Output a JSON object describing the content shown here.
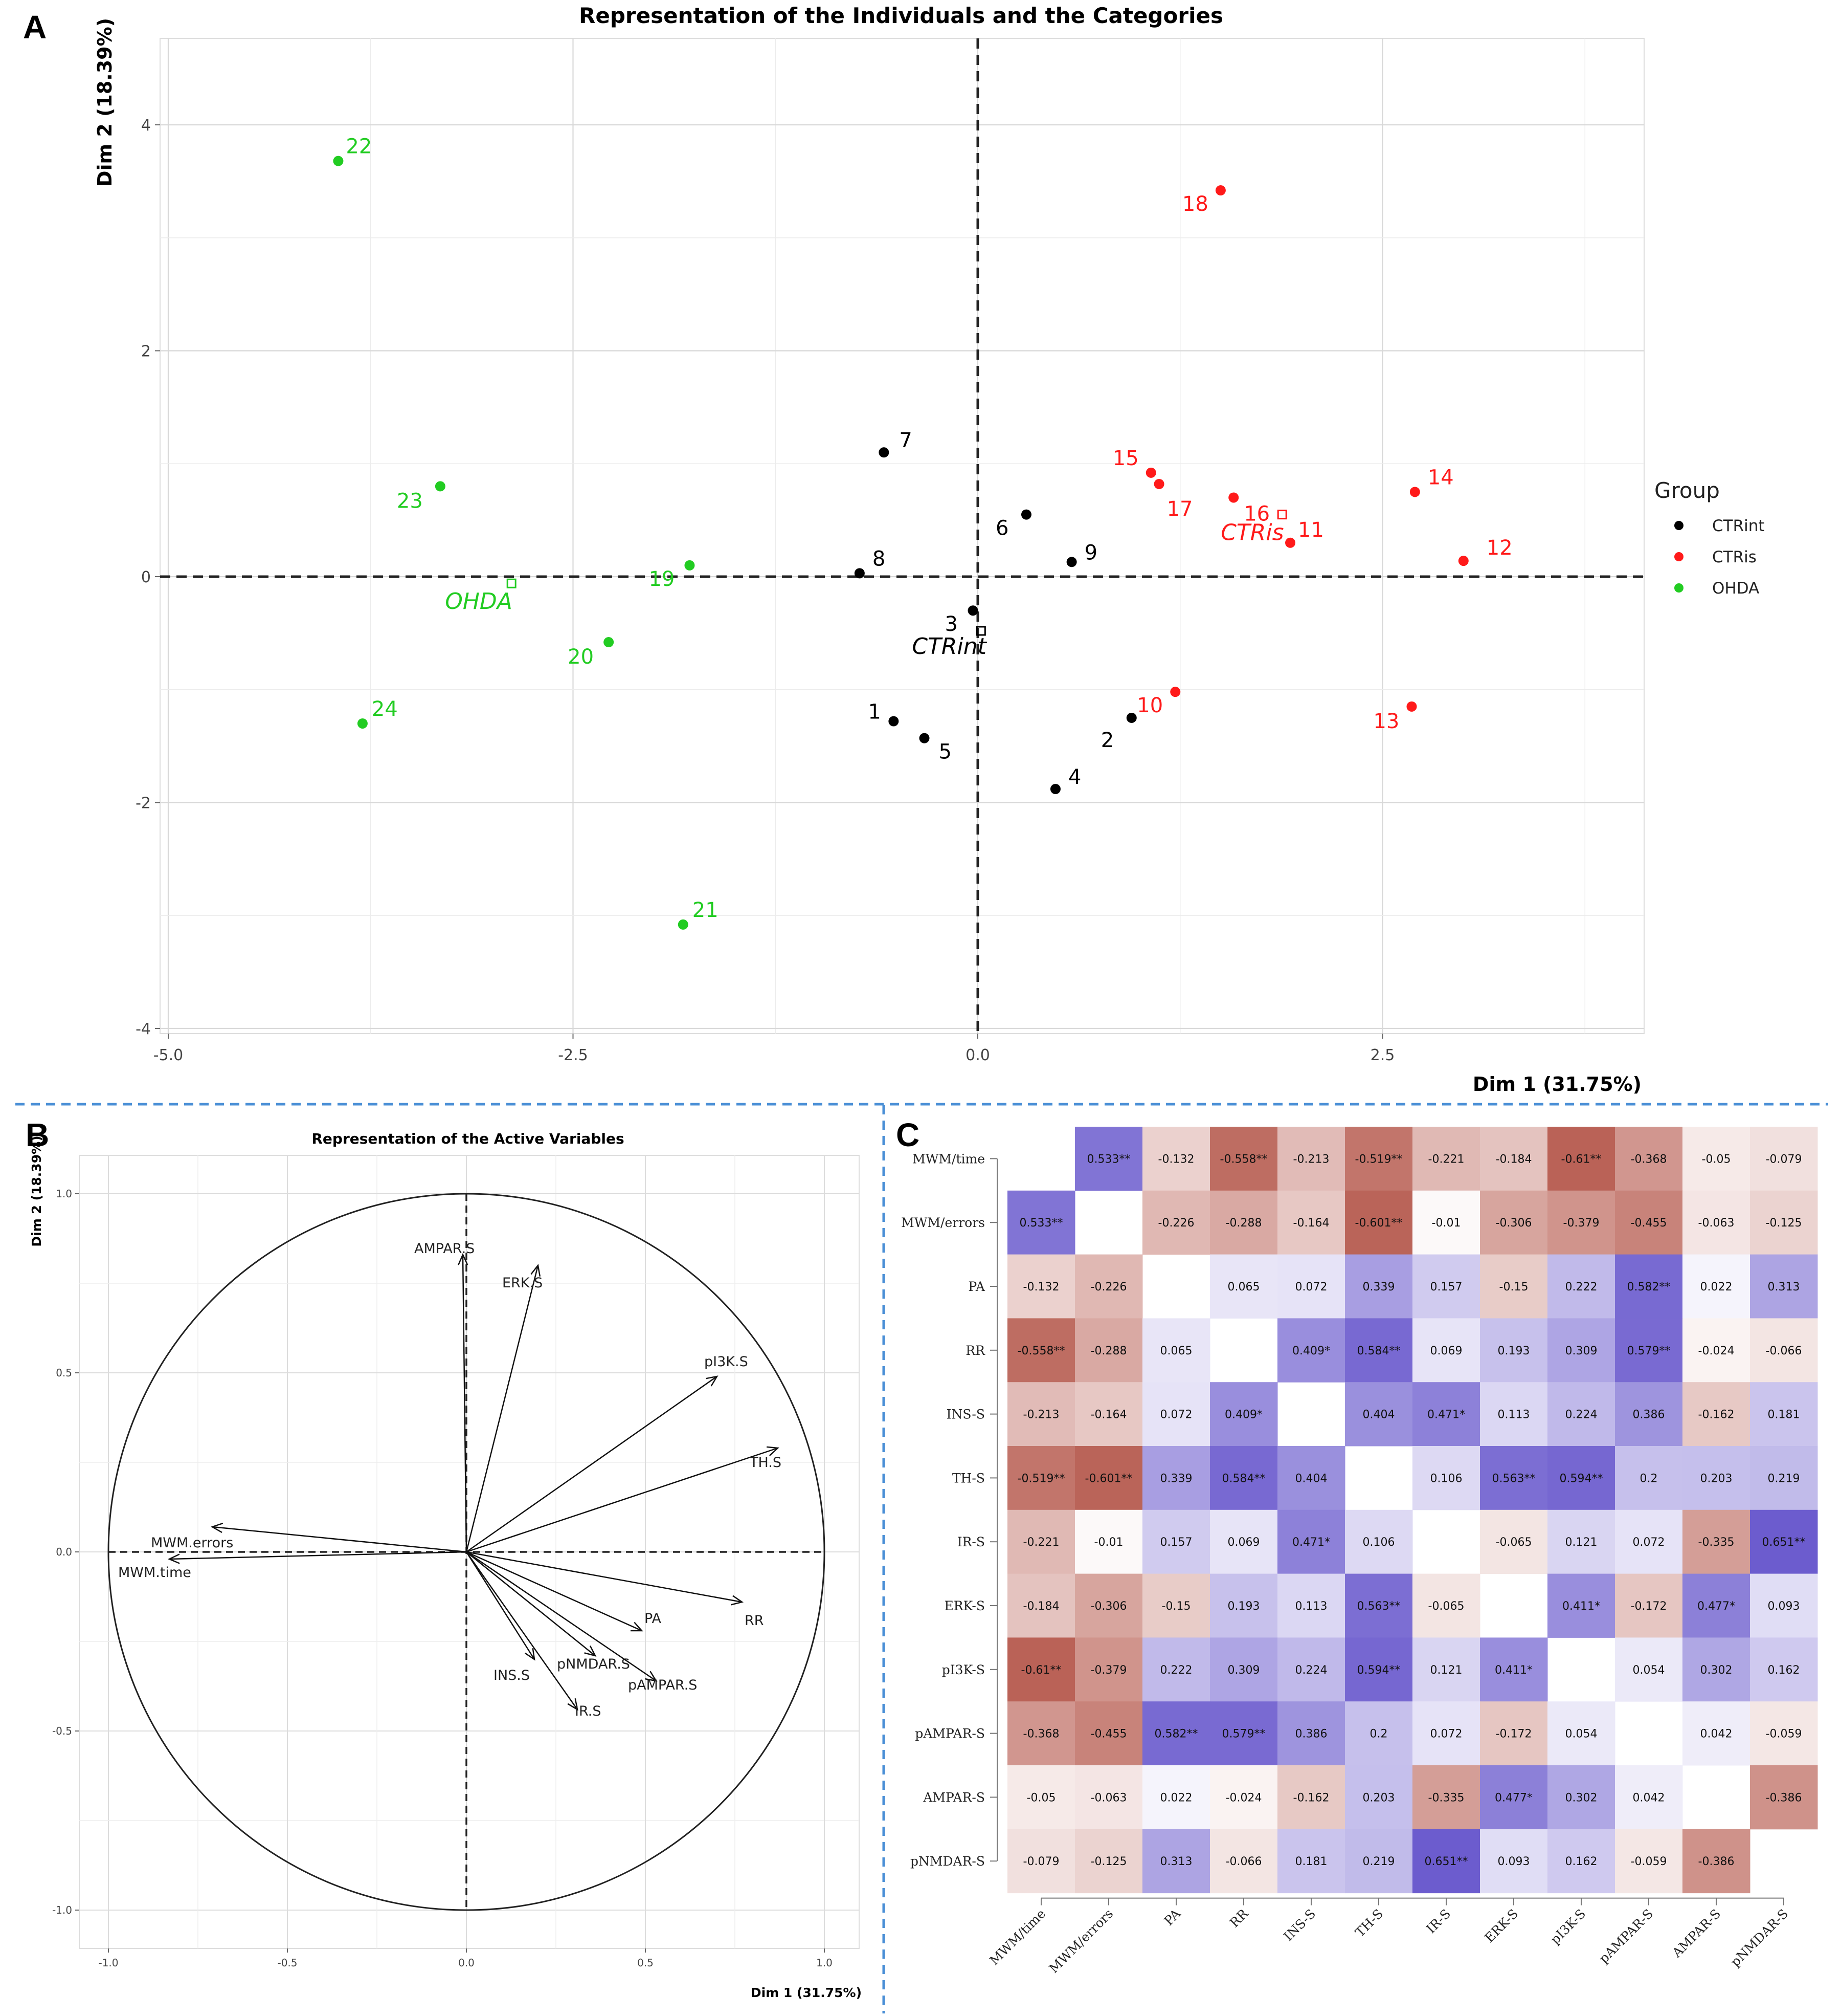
{
  "panels": {
    "a": "A",
    "b": "B",
    "c": "C"
  },
  "colors": {
    "CTRint": "#000000",
    "CTRis": "#ff1a1a",
    "OHDA": "#22cc22",
    "pos": "#6a5acd",
    "neg": "#b5584c"
  },
  "chart_data": [
    {
      "type": "scatter",
      "title": "Representation of the Individuals and the Categories",
      "xlabel": "Dim 1 (31.75%)",
      "ylabel": "Dim 2 (18.39%)",
      "xlim": [
        -5.1,
        4.1
      ],
      "ylim": [
        -4.1,
        4.75
      ],
      "xticks": [
        {
          "v": -5.0,
          "label": "-5.0"
        },
        {
          "v": -2.5,
          "label": "-2.5"
        },
        {
          "v": 0,
          "label": "0.0"
        },
        {
          "v": 2.5,
          "label": "2.5"
        }
      ],
      "yticks": [
        {
          "v": 4,
          "label": "4"
        },
        {
          "v": 2,
          "label": "2"
        },
        {
          "v": 0,
          "label": "0"
        },
        {
          "v": -2,
          "label": "-2"
        },
        {
          "v": -4,
          "label": "-4"
        }
      ],
      "legend": {
        "title": "Group",
        "position": "right",
        "entries": [
          {
            "label": "CTRint",
            "group": "CTRint"
          },
          {
            "label": "CTRis",
            "group": "CTRis"
          },
          {
            "label": "OHDA",
            "group": "OHDA"
          }
        ]
      },
      "points": [
        {
          "label": "1",
          "x": -0.52,
          "y": -1.28,
          "group": "CTRint"
        },
        {
          "label": "2",
          "x": 0.95,
          "y": -1.25,
          "group": "CTRint"
        },
        {
          "label": "3",
          "x": -0.03,
          "y": -0.3,
          "group": "CTRint"
        },
        {
          "label": "4",
          "x": 0.48,
          "y": -1.88,
          "group": "CTRint"
        },
        {
          "label": "5",
          "x": -0.33,
          "y": -1.43,
          "group": "CTRint"
        },
        {
          "label": "6",
          "x": 0.3,
          "y": 0.55,
          "group": "CTRint"
        },
        {
          "label": "7",
          "x": -0.58,
          "y": 1.1,
          "group": "CTRint"
        },
        {
          "label": "8",
          "x": -0.73,
          "y": 0.03,
          "group": "CTRint"
        },
        {
          "label": "9",
          "x": 0.58,
          "y": 0.13,
          "group": "CTRint"
        },
        {
          "label": "10",
          "x": 1.22,
          "y": -1.02,
          "group": "CTRis"
        },
        {
          "label": "11",
          "x": 1.93,
          "y": 0.3,
          "group": "CTRis"
        },
        {
          "label": "12",
          "x": 3.0,
          "y": 0.14,
          "group": "CTRis"
        },
        {
          "label": "13",
          "x": 2.68,
          "y": -1.15,
          "group": "CTRis"
        },
        {
          "label": "14",
          "x": 2.7,
          "y": 0.75,
          "group": "CTRis"
        },
        {
          "label": "15",
          "x": 1.07,
          "y": 0.92,
          "group": "CTRis"
        },
        {
          "label": "16",
          "x": 1.58,
          "y": 0.7,
          "group": "CTRis"
        },
        {
          "label": "17",
          "x": 1.12,
          "y": 0.82,
          "group": "CTRis"
        },
        {
          "label": "18",
          "x": 1.5,
          "y": 3.42,
          "group": "CTRis"
        },
        {
          "label": "19",
          "x": -1.78,
          "y": 0.1,
          "group": "OHDA"
        },
        {
          "label": "20",
          "x": -2.28,
          "y": -0.58,
          "group": "OHDA"
        },
        {
          "label": "21",
          "x": -1.82,
          "y": -3.08,
          "group": "OHDA"
        },
        {
          "label": "22",
          "x": -3.95,
          "y": 3.68,
          "group": "OHDA"
        },
        {
          "label": "23",
          "x": -3.32,
          "y": 0.8,
          "group": "OHDA"
        },
        {
          "label": "24",
          "x": -3.8,
          "y": -1.3,
          "group": "OHDA"
        }
      ],
      "categories": [
        {
          "label": "CTRint",
          "x": 0.02,
          "y": -0.48,
          "group": "CTRint"
        },
        {
          "label": "CTRis",
          "x": 1.88,
          "y": 0.55,
          "group": "CTRis"
        },
        {
          "label": "OHDA",
          "x": -2.88,
          "y": -0.06,
          "group": "OHDA"
        }
      ]
    },
    {
      "type": "scatter",
      "title": "Representation of the Active Variables",
      "xlabel": "Dim 1 (31.75%)",
      "ylabel": "Dim 2 (18.39%)",
      "xlim": [
        -1.08,
        1.08
      ],
      "ylim": [
        -1.08,
        1.08
      ],
      "xticks": [
        {
          "v": -1.0,
          "label": "-1.0"
        },
        {
          "v": -0.5,
          "label": "-0.5"
        },
        {
          "v": 0,
          "label": "0.0"
        },
        {
          "v": 0.5,
          "label": "0.5"
        },
        {
          "v": 1.0,
          "label": "1.0"
        }
      ],
      "yticks": [
        {
          "v": 1.0,
          "label": "1.0"
        },
        {
          "v": 0.5,
          "label": "0.5"
        },
        {
          "v": 0,
          "label": "0.0"
        },
        {
          "v": -0.5,
          "label": "-0.5"
        },
        {
          "v": -1.0,
          "label": "-1.0"
        }
      ],
      "arrows": [
        {
          "label": "AMPAR.S",
          "x": -0.01,
          "y": 0.83
        },
        {
          "label": "ERK.S",
          "x": 0.2,
          "y": 0.8
        },
        {
          "label": "pI3K.S",
          "x": 0.7,
          "y": 0.49
        },
        {
          "label": "TH.S",
          "x": 0.87,
          "y": 0.29
        },
        {
          "label": "MWM.errors",
          "x": -0.71,
          "y": 0.07
        },
        {
          "label": "MWM.time",
          "x": -0.83,
          "y": -0.02
        },
        {
          "label": "RR",
          "x": 0.77,
          "y": -0.14
        },
        {
          "label": "PA",
          "x": 0.49,
          "y": -0.22
        },
        {
          "label": "pNMDAR.S",
          "x": 0.36,
          "y": -0.29
        },
        {
          "label": "pAMPAR.S",
          "x": 0.53,
          "y": -0.36
        },
        {
          "label": "INS.S",
          "x": 0.19,
          "y": -0.3
        },
        {
          "label": "IR.S",
          "x": 0.31,
          "y": -0.44
        }
      ]
    },
    {
      "type": "heatmap",
      "labels": [
        "MWM/time",
        "MWM/errors",
        "PA",
        "RR",
        "INS-S",
        "TH-S",
        "IR-S",
        "ERK-S",
        "pI3K-S",
        "pAMPAR-S",
        "AMPAR-S",
        "pNMDAR-S"
      ],
      "values": [
        [
          null,
          0.533,
          -0.132,
          -0.558,
          -0.213,
          -0.519,
          -0.221,
          -0.184,
          -0.61,
          -0.368,
          -0.05,
          -0.079
        ],
        [
          0.533,
          null,
          -0.226,
          -0.288,
          -0.164,
          -0.601,
          -0.01,
          -0.306,
          -0.379,
          -0.455,
          -0.063,
          -0.125
        ],
        [
          -0.132,
          -0.226,
          null,
          0.065,
          0.072,
          0.339,
          0.157,
          -0.15,
          0.222,
          0.582,
          0.022,
          0.313
        ],
        [
          -0.558,
          -0.288,
          0.065,
          null,
          0.409,
          0.584,
          0.069,
          0.193,
          0.309,
          0.579,
          -0.024,
          -0.066
        ],
        [
          -0.213,
          -0.164,
          0.072,
          0.409,
          null,
          0.404,
          0.471,
          0.113,
          0.224,
          0.386,
          -0.162,
          0.181
        ],
        [
          -0.519,
          -0.601,
          0.339,
          0.584,
          0.404,
          null,
          0.106,
          0.563,
          0.594,
          0.2,
          0.203,
          0.219
        ],
        [
          -0.221,
          -0.01,
          0.157,
          0.069,
          0.471,
          0.106,
          null,
          -0.065,
          0.121,
          0.072,
          -0.335,
          0.651
        ],
        [
          -0.184,
          -0.306,
          -0.15,
          0.193,
          0.113,
          0.563,
          -0.065,
          null,
          0.411,
          -0.172,
          0.477,
          0.093
        ],
        [
          -0.61,
          -0.379,
          0.222,
          0.309,
          0.224,
          0.594,
          0.121,
          0.411,
          null,
          0.054,
          0.302,
          0.162
        ],
        [
          -0.368,
          -0.455,
          0.582,
          0.579,
          0.386,
          0.2,
          0.072,
          -0.172,
          0.054,
          null,
          0.042,
          -0.059
        ],
        [
          -0.05,
          -0.063,
          0.022,
          -0.024,
          -0.162,
          0.203,
          -0.335,
          0.477,
          0.302,
          0.042,
          null,
          -0.386
        ],
        [
          -0.079,
          -0.125,
          0.313,
          -0.066,
          0.181,
          0.219,
          0.651,
          0.093,
          0.162,
          -0.059,
          -0.386,
          null
        ]
      ],
      "cells": [
        [
          "",
          "0.533**",
          "-0.132",
          "-0.558**",
          "-0.213",
          "-0.519**",
          "-0.221",
          "-0.184",
          "-0.61**",
          "-0.368",
          "-0.05",
          "-0.079"
        ],
        [
          "0.533**",
          "",
          "-0.226",
          "-0.288",
          "-0.164",
          "-0.601**",
          "-0.01",
          "-0.306",
          "-0.379",
          "-0.455",
          "-0.063",
          "-0.125"
        ],
        [
          "-0.132",
          "-0.226",
          "",
          "0.065",
          "0.072",
          "0.339",
          "0.157",
          "-0.15",
          "0.222",
          "0.582**",
          "0.022",
          "0.313"
        ],
        [
          "-0.558**",
          "-0.288",
          "0.065",
          "",
          "0.409*",
          "0.584**",
          "0.069",
          "0.193",
          "0.309",
          "0.579**",
          "-0.024",
          "-0.066"
        ],
        [
          "-0.213",
          "-0.164",
          "0.072",
          "0.409*",
          "",
          "0.404",
          "0.471*",
          "0.113",
          "0.224",
          "0.386",
          "-0.162",
          "0.181"
        ],
        [
          "-0.519**",
          "-0.601**",
          "0.339",
          "0.584**",
          "0.404",
          "",
          "0.106",
          "0.563**",
          "0.594**",
          "0.2",
          "0.203",
          "0.219"
        ],
        [
          "-0.221",
          "-0.01",
          "0.157",
          "0.069",
          "0.471*",
          "0.106",
          "",
          "-0.065",
          "0.121",
          "0.072",
          "-0.335",
          "0.651**"
        ],
        [
          "-0.184",
          "-0.306",
          "-0.15",
          "0.193",
          "0.113",
          "0.563**",
          "-0.065",
          "",
          "0.411*",
          "-0.172",
          "0.477*",
          "0.093"
        ],
        [
          "-0.61**",
          "-0.379",
          "0.222",
          "0.309",
          "0.224",
          "0.594**",
          "0.121",
          "0.411*",
          "",
          "0.054",
          "0.302",
          "0.162"
        ],
        [
          "-0.368",
          "-0.455",
          "0.582**",
          "0.579**",
          "0.386",
          "0.2",
          "0.072",
          "-0.172",
          "0.054",
          "",
          "0.042",
          "-0.059"
        ],
        [
          "-0.05",
          "-0.063",
          "0.022",
          "-0.024",
          "-0.162",
          "0.203",
          "-0.335",
          "0.477*",
          "0.302",
          "0.042",
          "",
          "-0.386"
        ],
        [
          "-0.079",
          "-0.125",
          "0.313",
          "-0.066",
          "0.181",
          "0.219",
          "0.651**",
          "0.093",
          "0.162",
          "-0.059",
          "-0.386",
          ""
        ]
      ]
    }
  ]
}
